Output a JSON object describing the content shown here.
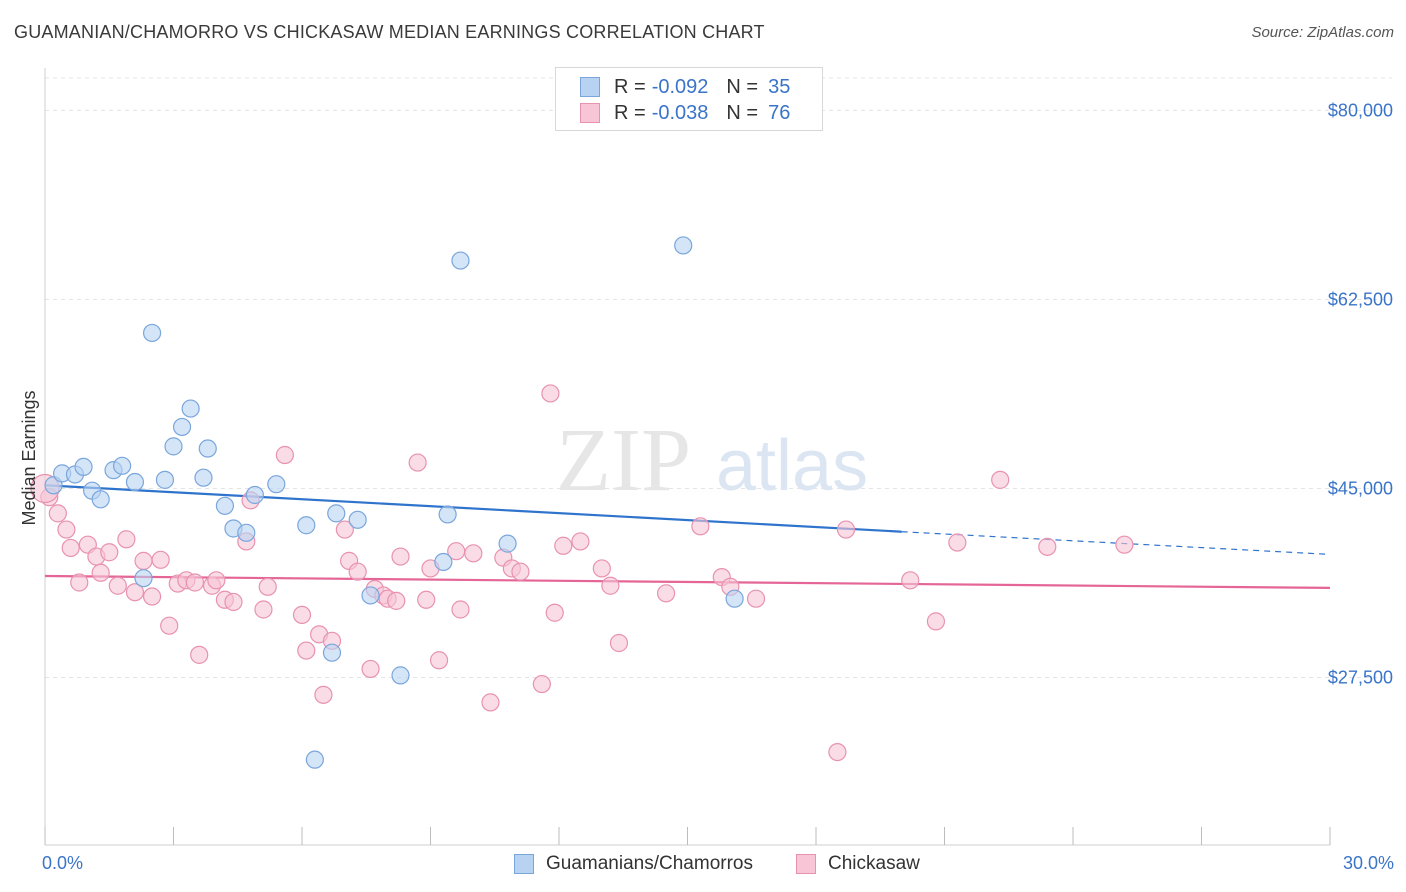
{
  "title": "GUAMANIAN/CHAMORRO VS CHICKASAW MEDIAN EARNINGS CORRELATION CHART",
  "source": "Source: ZipAtlas.com",
  "watermark": {
    "zip": "ZIP",
    "atlas": "atlas"
  },
  "legend": {
    "rows": [
      {
        "r_label": "R =",
        "r_value": "-0.092",
        "n_label": "N =",
        "n_value": "35"
      },
      {
        "r_label": "R =",
        "r_value": "-0.038",
        "n_label": "N =",
        "n_value": "76"
      }
    ]
  },
  "bottom_legend": {
    "series1": "Guamanians/Chamorros",
    "series2": "Chickasaw"
  },
  "x_axis": {
    "min_label": "0.0%",
    "max_label": "30.0%"
  },
  "colors": {
    "blue_fill": "#b8d3f2",
    "blue_stroke": "#7aa6dc",
    "blue_line": "#2f74cc",
    "pink_fill": "#f7c5d5",
    "pink_stroke": "#e892b0",
    "pink_line": "#e46596",
    "axis_label": "#3a74c9",
    "grid": "#e4e4e4"
  },
  "chart_data": {
    "type": "scatter",
    "title": "GUAMANIAN/CHAMORRO VS CHICKASAW MEDIAN EARNINGS CORRELATION CHART",
    "xlabel": "",
    "ylabel": "Median Earnings",
    "xlim": [
      0,
      30
    ],
    "ylim": [
      12000,
      83000
    ],
    "y_ticks": [
      27500,
      45000,
      62500,
      80000
    ],
    "y_tick_labels": [
      "$27,500",
      "$45,000",
      "$62,500",
      "$80,000"
    ],
    "grid": true,
    "series": [
      {
        "name": "Guamanians/Chamorros",
        "color": "#7aa6dc",
        "trend": {
          "x0": 0,
          "y0": 45300,
          "x1": 20,
          "y1": 41000,
          "dash_to_x": 30,
          "dash_to_y": 38900
        },
        "points": [
          [
            0.2,
            45300
          ],
          [
            0.4,
            46400
          ],
          [
            0.7,
            46300
          ],
          [
            0.9,
            47000
          ],
          [
            1.1,
            44800
          ],
          [
            1.3,
            44000
          ],
          [
            1.6,
            46700
          ],
          [
            1.8,
            47100
          ],
          [
            2.1,
            45600
          ],
          [
            2.3,
            36700
          ],
          [
            2.5,
            59400
          ],
          [
            2.8,
            45800
          ],
          [
            3.0,
            48900
          ],
          [
            3.2,
            50700
          ],
          [
            3.4,
            52400
          ],
          [
            3.7,
            46000
          ],
          [
            3.8,
            48700
          ],
          [
            4.2,
            43400
          ],
          [
            4.4,
            41300
          ],
          [
            4.7,
            40900
          ],
          [
            4.9,
            44400
          ],
          [
            5.4,
            45400
          ],
          [
            6.1,
            41600
          ],
          [
            6.3,
            19900
          ],
          [
            6.7,
            29800
          ],
          [
            6.8,
            42700
          ],
          [
            7.3,
            42100
          ],
          [
            7.6,
            35100
          ],
          [
            8.3,
            27700
          ],
          [
            9.3,
            38200
          ],
          [
            9.4,
            42600
          ],
          [
            9.7,
            66100
          ],
          [
            10.8,
            39900
          ],
          [
            14.9,
            67500
          ],
          [
            16.1,
            34800
          ]
        ]
      },
      {
        "name": "Chickasaw",
        "color": "#e892b0",
        "trend": {
          "x0": 0,
          "y0": 36900,
          "x1": 30,
          "y1": 35800
        },
        "points": [
          [
            0.1,
            44200
          ],
          [
            0.3,
            42700
          ],
          [
            0.5,
            41200
          ],
          [
            0.6,
            39500
          ],
          [
            0.8,
            36300
          ],
          [
            1.0,
            39800
          ],
          [
            1.2,
            38700
          ],
          [
            1.3,
            37200
          ],
          [
            1.5,
            39100
          ],
          [
            1.7,
            36000
          ],
          [
            1.9,
            40300
          ],
          [
            2.1,
            35400
          ],
          [
            2.3,
            38300
          ],
          [
            2.5,
            35000
          ],
          [
            2.7,
            38400
          ],
          [
            2.9,
            32300
          ],
          [
            3.1,
            36200
          ],
          [
            3.3,
            36500
          ],
          [
            3.5,
            36300
          ],
          [
            3.6,
            29600
          ],
          [
            3.9,
            36000
          ],
          [
            4.0,
            36500
          ],
          [
            4.2,
            34700
          ],
          [
            4.4,
            34500
          ],
          [
            4.7,
            40100
          ],
          [
            4.8,
            43900
          ],
          [
            5.1,
            33800
          ],
          [
            5.2,
            35900
          ],
          [
            5.6,
            48100
          ],
          [
            6.0,
            33300
          ],
          [
            6.1,
            30000
          ],
          [
            6.4,
            31500
          ],
          [
            6.5,
            25900
          ],
          [
            6.7,
            30900
          ],
          [
            7.0,
            41200
          ],
          [
            7.1,
            38300
          ],
          [
            7.3,
            37300
          ],
          [
            7.6,
            28300
          ],
          [
            7.7,
            35700
          ],
          [
            7.9,
            35100
          ],
          [
            8.0,
            34800
          ],
          [
            8.2,
            34600
          ],
          [
            8.3,
            38700
          ],
          [
            8.7,
            47400
          ],
          [
            8.9,
            34700
          ],
          [
            9.0,
            37600
          ],
          [
            9.2,
            29100
          ],
          [
            9.6,
            39200
          ],
          [
            9.7,
            33800
          ],
          [
            10.0,
            39000
          ],
          [
            10.4,
            25200
          ],
          [
            10.7,
            38600
          ],
          [
            10.9,
            37600
          ],
          [
            11.1,
            37300
          ],
          [
            11.6,
            26900
          ],
          [
            11.8,
            53800
          ],
          [
            11.9,
            33500
          ],
          [
            12.1,
            39700
          ],
          [
            12.5,
            40100
          ],
          [
            13.0,
            37600
          ],
          [
            13.2,
            36000
          ],
          [
            13.4,
            30700
          ],
          [
            14.5,
            35300
          ],
          [
            15.3,
            41500
          ],
          [
            15.8,
            36800
          ],
          [
            16.0,
            35900
          ],
          [
            16.6,
            34800
          ],
          [
            18.5,
            20600
          ],
          [
            18.7,
            41200
          ],
          [
            20.2,
            36500
          ],
          [
            20.8,
            32700
          ],
          [
            21.3,
            40000
          ],
          [
            22.3,
            45800
          ],
          [
            23.4,
            39600
          ],
          [
            25.2,
            39800
          ],
          [
            0.0,
            45000
          ]
        ]
      }
    ]
  }
}
